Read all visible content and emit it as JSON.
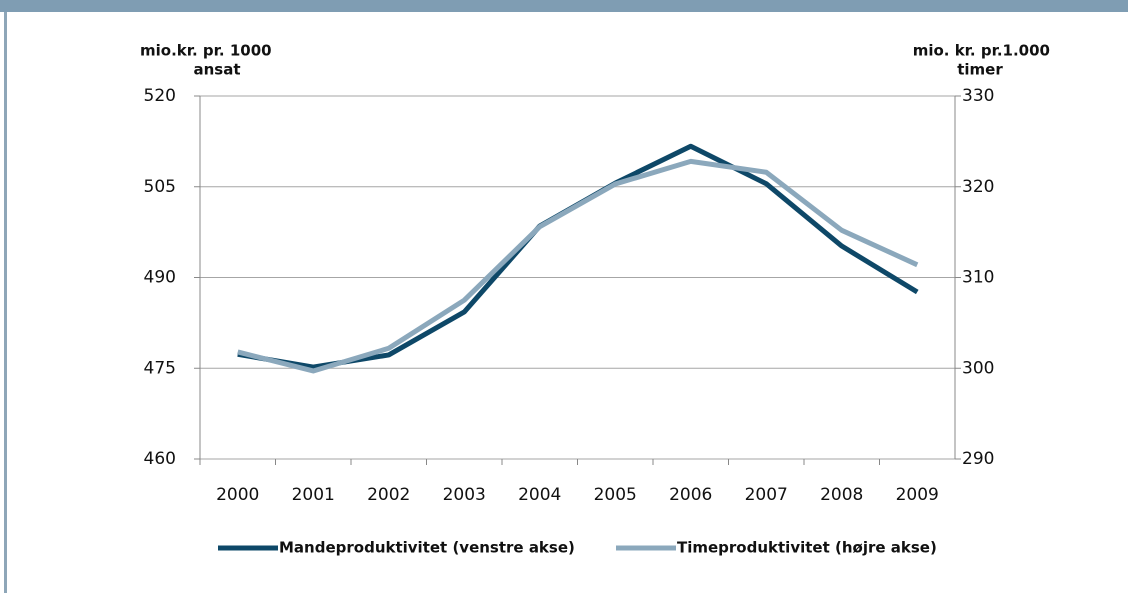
{
  "chart_data": {
    "type": "line",
    "y_label": [
      "mio.kr. pr. 1000",
      "ansat"
    ],
    "y2_label": [
      "mio. kr. pr.1.000",
      "timer"
    ],
    "categories": [
      "2000",
      "2001",
      "2002",
      "2003",
      "2004",
      "2005",
      "2006",
      "2007",
      "2008",
      "2009"
    ],
    "series": [
      {
        "name": "Mandeproduktivitet (venstre akse)",
        "color": "#0e4868",
        "values": [
          477.3,
          475.2,
          477.2,
          484.3,
          498.5,
          505.6,
          511.7,
          505.5,
          495.2,
          487.6
        ]
      },
      {
        "name": "Timeproduktivitet (højre akse)",
        "color": "#8ba8bc",
        "axis": "y2",
        "values": [
          301.8,
          299.7,
          302.2,
          307.5,
          315.6,
          320.3,
          322.8,
          321.6,
          315.2,
          311.4
        ]
      }
    ],
    "ylim": [
      460,
      520
    ],
    "yticks": [
      460,
      475,
      490,
      505,
      520
    ],
    "y2lim": [
      290,
      330
    ],
    "y2ticks": [
      290,
      300,
      310,
      320,
      330
    ],
    "grid": true,
    "legend": "bottom"
  }
}
